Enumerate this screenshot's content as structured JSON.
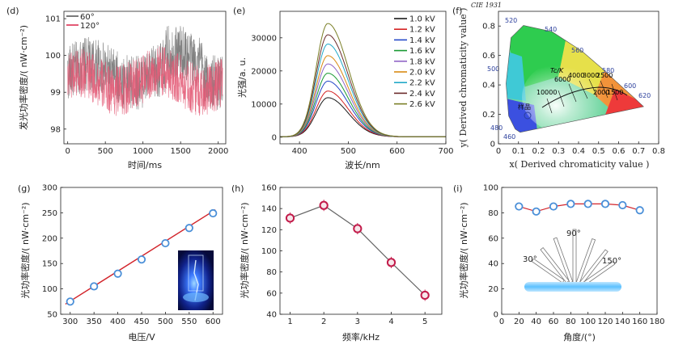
{
  "chart_data": [
    {
      "id": "d",
      "type": "line",
      "panel_label": "(d)",
      "xlabel": "时间/ms",
      "ylabel": "发光功率密度/( nW·cm⁻²)",
      "xlim": [
        -50,
        2100
      ],
      "ylim": [
        97.6,
        101.2
      ],
      "xticks": [
        0,
        500,
        1000,
        1500,
        2000
      ],
      "yticks": [
        98,
        99,
        100,
        101
      ],
      "legend": {
        "position": "top-left"
      },
      "series": [
        {
          "name": "60°",
          "color": "#7a7a7a",
          "mean": 99.5,
          "amplitude": 0.75
        },
        {
          "name": "120°",
          "color": "#e35a76",
          "mean": 99.3,
          "amplitude": 0.7
        }
      ]
    },
    {
      "id": "e",
      "type": "line",
      "panel_label": "(e)",
      "xlabel": "波长/nm",
      "ylabel": "光强/a. u.",
      "xlim": [
        360,
        700
      ],
      "ylim": [
        -2000,
        38000
      ],
      "xticks": [
        400,
        500,
        600,
        700
      ],
      "yticks": [
        0,
        10000,
        20000,
        30000
      ],
      "peak_nm": 458,
      "legend": {
        "position": "top-right"
      },
      "series": [
        {
          "name": "1.0 kV",
          "peak": 11800,
          "color": "#1a1a1a"
        },
        {
          "name": "1.2 kV",
          "peak": 13800,
          "color": "#d42020"
        },
        {
          "name": "1.4 kV",
          "peak": 16800,
          "color": "#2548c8"
        },
        {
          "name": "1.6 kV",
          "peak": 19200,
          "color": "#1a9a33"
        },
        {
          "name": "1.8 kV",
          "peak": 22000,
          "color": "#8f64c6"
        },
        {
          "name": "2.0 kV",
          "peak": 24500,
          "color": "#d98a14"
        },
        {
          "name": "2.2 kV",
          "peak": 28000,
          "color": "#21a8c7"
        },
        {
          "name": "2.4 kV",
          "peak": 30800,
          "color": "#6b2b2b"
        },
        {
          "name": "2.6 kV",
          "peak": 34200,
          "color": "#7a7f26"
        }
      ]
    },
    {
      "id": "f",
      "type": "scatter",
      "panel_label": "(f)",
      "title": "CIE 1931",
      "xlabel": "x( Derived chromaticity value )",
      "ylabel": "y( Derived chromaticity value )",
      "xlim": [
        0,
        0.8
      ],
      "ylim": [
        0,
        0.9
      ],
      "xticks": [
        "0",
        "0.1",
        "0.2",
        "0.3",
        "0.4",
        "0.5",
        "0.6",
        "0.7",
        "0.8"
      ],
      "yticks": [
        "0",
        "0.2",
        "0.4",
        "0.6",
        "0.8"
      ],
      "wavelength_labels": [
        "460",
        "480",
        "500",
        "520",
        "540",
        "560",
        "580",
        "600",
        "620"
      ],
      "cct_labels": [
        "10000",
        "6000",
        "4000",
        "3000",
        "2500",
        "2000",
        "1500"
      ],
      "tc_label": "Tc/K",
      "sample_label": "样品",
      "sample_point": {
        "x": 0.15,
        "y": 0.2
      }
    },
    {
      "id": "g",
      "type": "line",
      "panel_label": "(g)",
      "xlabel": "电压/V",
      "ylabel": "光功率密度/( nW·cm⁻²)",
      "xlim": [
        280,
        620
      ],
      "ylim": [
        50,
        300
      ],
      "xticks": [
        300,
        350,
        400,
        450,
        500,
        550,
        600
      ],
      "yticks": [
        50,
        100,
        150,
        200,
        250,
        300
      ],
      "x": [
        300,
        350,
        400,
        450,
        500,
        550,
        600
      ],
      "y": [
        75,
        105,
        130,
        158,
        190,
        220,
        249
      ],
      "fit": {
        "x": [
          290,
          605
        ],
        "y": [
          70,
          256
        ]
      }
    },
    {
      "id": "h",
      "type": "line",
      "panel_label": "(h)",
      "xlabel": "频率/kHz",
      "ylabel": "光功率密度/( nW·cm⁻²)",
      "xlim": [
        0.7,
        5.5
      ],
      "ylim": [
        40,
        160
      ],
      "xticks": [
        1,
        2,
        3,
        4,
        5
      ],
      "yticks": [
        40,
        60,
        80,
        100,
        120,
        140,
        160
      ],
      "x": [
        1,
        2,
        3,
        4,
        5
      ],
      "y": [
        131,
        143,
        121,
        89,
        58
      ]
    },
    {
      "id": "i",
      "type": "line",
      "panel_label": "(i)",
      "xlabel": "角度/(°)",
      "ylabel": "光功率密度/( nW·cm⁻²)",
      "xlim": [
        0,
        180
      ],
      "ylim": [
        0,
        100
      ],
      "xticks": [
        0,
        20,
        40,
        60,
        80,
        100,
        120,
        140,
        160,
        180
      ],
      "yticks": [
        0,
        20,
        40,
        60,
        80,
        100
      ],
      "x": [
        20,
        40,
        60,
        80,
        100,
        120,
        140,
        160
      ],
      "y": [
        85,
        81,
        85,
        87,
        87,
        87,
        86,
        82
      ],
      "angle_labels": [
        "30°",
        "90°",
        "150°"
      ]
    }
  ]
}
